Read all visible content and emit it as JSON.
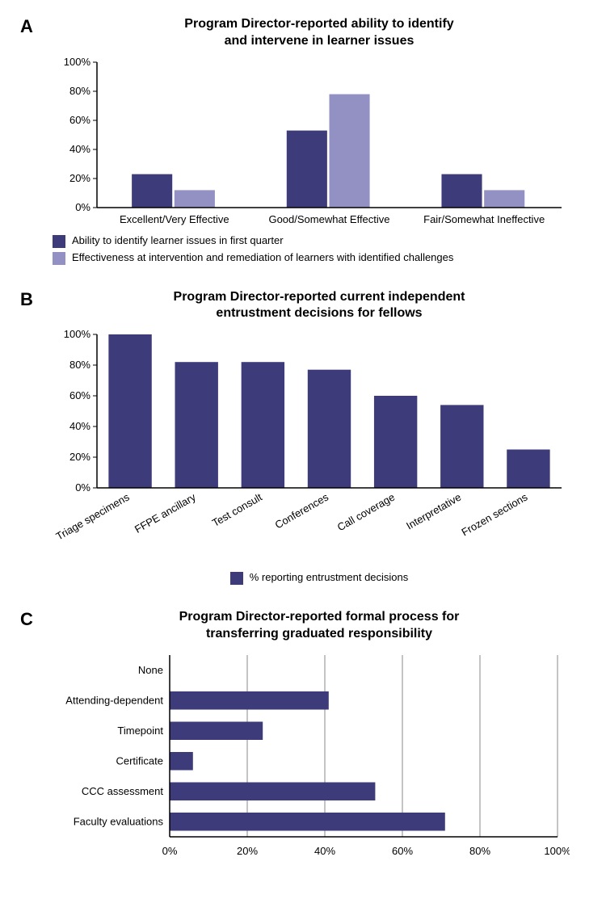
{
  "panelA": {
    "label": "A",
    "title_line1": "Program Director-reported ability to identify",
    "title_line2": "and intervene in learner issues",
    "type": "bar",
    "categories": [
      "Excellent/Very Effective",
      "Good/Somewhat Effective",
      "Fair/Somewhat Ineffective"
    ],
    "series": [
      {
        "name": "Ability to identify learner issues in first quarter",
        "color": "#3d3b7a",
        "values": [
          23,
          53,
          23
        ]
      },
      {
        "name": "Effectiveness at intervention and remediation of learners with identified challenges",
        "color": "#9390c4",
        "values": [
          12,
          78,
          12
        ]
      }
    ],
    "ylim": [
      0,
      100
    ],
    "ytick_step": 20,
    "axis_color": "#000000",
    "grid_color": "#ffffff",
    "background_color": "#ffffff",
    "bar_group_width": 0.55,
    "title_fontsize": 16,
    "label_fontsize": 13
  },
  "panelB": {
    "label": "B",
    "title_line1": "Program Director-reported current independent",
    "title_line2": "entrustment decisions for fellows",
    "type": "bar",
    "categories": [
      "Triage specimens",
      "FFPE ancillary",
      "Test consult",
      "Conferences",
      "Call coverage",
      "Interpretative",
      "Frozen sections"
    ],
    "values": [
      100,
      82,
      82,
      77,
      60,
      54,
      25
    ],
    "bar_color": "#3d3b7a",
    "ylim": [
      0,
      100
    ],
    "ytick_step": 20,
    "axis_color": "#000000",
    "bar_width": 0.65,
    "legend_label": "% reporting entrustment decisions",
    "title_fontsize": 16,
    "label_fontsize": 13,
    "xlabel_rotation": -30
  },
  "panelC": {
    "label": "C",
    "title_line1": "Program Director-reported formal process for",
    "title_line2": "transferring graduated responsibility",
    "type": "horizontal_bar",
    "categories": [
      "None",
      "Attending-dependent",
      "Timepoint",
      "Certificate",
      "CCC assessment",
      "Faculty evaluations"
    ],
    "values": [
      0,
      41,
      24,
      6,
      53,
      71
    ],
    "bar_color": "#3d3b7a",
    "xlim": [
      0,
      100
    ],
    "xtick_step": 20,
    "axis_color": "#000000",
    "grid_color": "#888888",
    "bar_width": 0.6,
    "title_fontsize": 16,
    "label_fontsize": 13
  }
}
